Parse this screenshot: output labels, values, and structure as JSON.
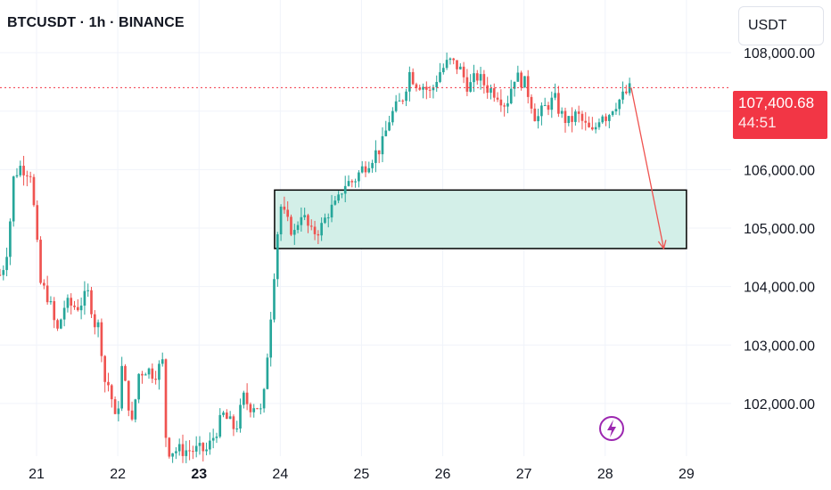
{
  "header": {
    "symbol_line": "BTCUSDT · 1h · BINANCE",
    "currency_button": "USDT"
  },
  "last_price": {
    "value": "107,400.68",
    "countdown": "44:51",
    "color": "#f23645"
  },
  "colors": {
    "up": "#26a69a",
    "down": "#ef5350",
    "zone_fill": "#d3efe8",
    "zone_border": "#000000",
    "arrow": "#ef5350",
    "grid": "#f0f3fa",
    "lightning": "#9c27b0"
  },
  "icons": {
    "lightning": "lightning-bolt-icon"
  },
  "chart_data": {
    "type": "candlestick",
    "title": "BTCUSDT · 1h · BINANCE",
    "y_axis": {
      "ticks": [
        102000,
        103000,
        104000,
        105000,
        106000,
        107000,
        108000
      ],
      "tick_labels": [
        "102,000.00",
        "103,000.00",
        "104,000.00",
        "105,000.00",
        "106,000.00",
        "",
        "108,000.00"
      ],
      "range": [
        101100,
        108900
      ]
    },
    "x_axis": {
      "days": [
        21,
        22,
        23,
        24,
        25,
        26,
        27,
        28,
        29
      ],
      "labels": [
        "21",
        "22",
        "23",
        "24",
        "25",
        "26",
        "27",
        "28",
        "29"
      ],
      "bold_label": "23",
      "range": [
        20.55,
        29.55
      ]
    },
    "grid": true,
    "price_line": 107400.68,
    "waypoints": [
      [
        20.55,
        104200
      ],
      [
        20.62,
        104450
      ],
      [
        20.68,
        105200
      ],
      [
        20.72,
        105900
      ],
      [
        20.8,
        106050
      ],
      [
        20.93,
        105950
      ],
      [
        21.0,
        104800
      ],
      [
        21.05,
        104050
      ],
      [
        21.15,
        103800
      ],
      [
        21.25,
        103200
      ],
      [
        21.35,
        103700
      ],
      [
        21.5,
        103650
      ],
      [
        21.65,
        103900
      ],
      [
        21.7,
        103400
      ],
      [
        21.78,
        103300
      ],
      [
        21.83,
        102400
      ],
      [
        21.9,
        102300
      ],
      [
        21.98,
        101600
      ],
      [
        22.05,
        102600
      ],
      [
        22.12,
        102100
      ],
      [
        22.18,
        101600
      ],
      [
        22.25,
        102500
      ],
      [
        22.35,
        102600
      ],
      [
        22.45,
        102500
      ],
      [
        22.55,
        102700
      ],
      [
        22.6,
        101200
      ],
      [
        23.1,
        101200
      ],
      [
        23.3,
        101800
      ],
      [
        23.45,
        101550
      ],
      [
        23.55,
        102100
      ],
      [
        23.62,
        101950
      ],
      [
        23.7,
        102000
      ],
      [
        23.78,
        101800
      ],
      [
        23.85,
        103000
      ],
      [
        23.9,
        103800
      ],
      [
        23.95,
        104700
      ],
      [
        24.0,
        105400
      ],
      [
        24.08,
        105100
      ],
      [
        24.18,
        104900
      ],
      [
        24.25,
        105300
      ],
      [
        24.38,
        104900
      ],
      [
        24.5,
        105000
      ],
      [
        24.6,
        105300
      ],
      [
        24.7,
        105400
      ],
      [
        24.78,
        105750
      ],
      [
        24.9,
        105800
      ],
      [
        25.0,
        106000
      ],
      [
        25.12,
        106200
      ],
      [
        25.25,
        106400
      ],
      [
        25.35,
        106900
      ],
      [
        25.5,
        107200
      ],
      [
        25.6,
        107700
      ],
      [
        25.65,
        107500
      ],
      [
        25.75,
        107450
      ],
      [
        25.85,
        107300
      ],
      [
        25.95,
        107650
      ],
      [
        26.08,
        107850
      ],
      [
        26.2,
        107750
      ],
      [
        26.32,
        107400
      ],
      [
        26.42,
        107600
      ],
      [
        26.55,
        107400
      ],
      [
        26.68,
        107300
      ],
      [
        26.78,
        107100
      ],
      [
        26.88,
        107600
      ],
      [
        27.0,
        107500
      ],
      [
        27.08,
        107200
      ],
      [
        27.15,
        106850
      ],
      [
        27.28,
        107100
      ],
      [
        27.38,
        107200
      ],
      [
        27.45,
        106950
      ],
      [
        27.55,
        106800
      ],
      [
        27.65,
        106950
      ],
      [
        27.75,
        106750
      ],
      [
        27.85,
        106600
      ],
      [
        27.95,
        107000
      ],
      [
        28.02,
        106900
      ],
      [
        28.1,
        107100
      ],
      [
        28.22,
        107250
      ],
      [
        28.32,
        107400
      ]
    ],
    "demand_zone": {
      "x_start": 23.93,
      "x_end": 29.0,
      "y_low": 104650,
      "y_high": 105650
    },
    "projection_arrow": {
      "from": [
        28.32,
        107400
      ],
      "to": [
        28.72,
        104650
      ]
    }
  }
}
